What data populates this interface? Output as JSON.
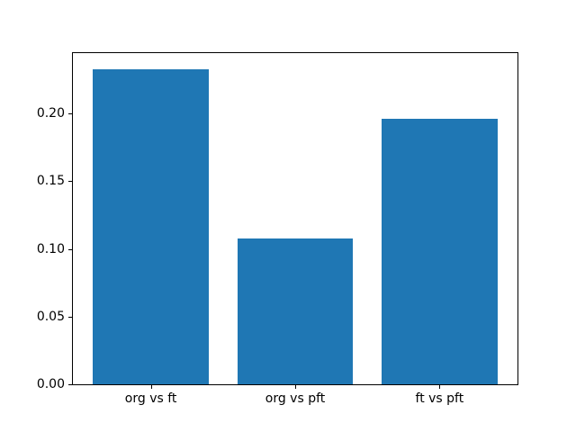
{
  "chart_data": {
    "type": "bar",
    "title": "",
    "xlabel": "",
    "ylabel": "",
    "categories": [
      "org vs ft",
      "org vs pft",
      "ft vs pft"
    ],
    "values": [
      0.233,
      0.108,
      0.196
    ],
    "x": [
      0,
      1,
      2
    ],
    "bar_width": 0.8,
    "bar_color": "#1f77b4",
    "xlim": [
      -0.54,
      2.54
    ],
    "ylim": [
      0,
      0.2447
    ],
    "yticks": [
      0,
      0.05,
      0.1,
      0.15,
      0.2
    ],
    "ytick_labels": [
      "0.00",
      "0.05",
      "0.10",
      "0.15",
      "0.20"
    ],
    "grid": false,
    "legend": false,
    "background": "#ffffff",
    "spine_color": "#000000",
    "tick_color": "#000000"
  }
}
